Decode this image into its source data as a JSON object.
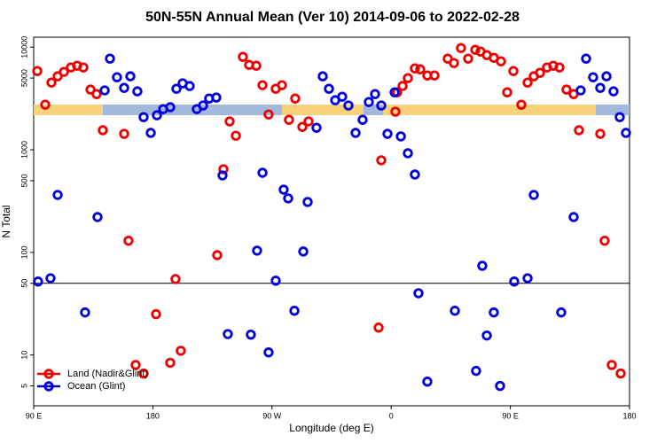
{
  "chart_data": {
    "type": "scatter",
    "title": "50N-55N Annual Mean (Ver 10)   2014-09-06 to 2022-02-28",
    "xlabel": "Longitude (deg E)",
    "ylabel": "N Total",
    "xlim": [
      90,
      540
    ],
    "xticks": [
      {
        "value": 90,
        "label": "90 E"
      },
      {
        "value": 180,
        "label": "180"
      },
      {
        "value": 270,
        "label": "90 W"
      },
      {
        "value": 360,
        "label": "0"
      },
      {
        "value": 450,
        "label": "90 E"
      },
      {
        "value": 540,
        "label": "180"
      }
    ],
    "ylim": [
      3.2,
      12500
    ],
    "log_y": true,
    "yticks": [
      5,
      10,
      50,
      100,
      500,
      1000,
      5000,
      10000
    ],
    "hline": 50,
    "legend": "lower left",
    "series": [
      {
        "name": "Land (Nadir&Glint)",
        "color": "#ee0000",
        "x": [
          92.7,
          98.7,
          103.4,
          108.1,
          112.8,
          118.1,
          122.8,
          127.5,
          132.9,
          137.5,
          142.2,
          158.3,
          161.6,
          167.0,
          173.0,
          182.4,
          193.1,
          197.1,
          201.1,
          228.6,
          233.3,
          238.0,
          242.7,
          248.0,
          252.7,
          258.1,
          262.8,
          267.4,
          272.8,
          277.5,
          282.8,
          287.5,
          292.9,
          297.6,
          350.5,
          352.5,
          363.2,
          364.5,
          368.6,
          372.6,
          377.9,
          381.9,
          387.3,
          392.7,
          402.7,
          407.4,
          412.7,
          418.1,
          423.5,
          427.5,
          432.2,
          437.5,
          442.9,
          447.6,
          452.3,
          458.3,
          463.0,
          467.7,
          472.4,
          477.7,
          482.4,
          487.1,
          492.4,
          497.8,
          501.8,
          517.9,
          521.2,
          526.6,
          533.3
        ],
        "values": [
          5850,
          2750,
          4520,
          5200,
          5740,
          6340,
          6590,
          6340,
          3860,
          3490,
          1550,
          1430,
          130,
          8.0,
          6.6,
          25,
          8.4,
          55,
          11,
          94,
          646,
          1890,
          1370,
          8040,
          6720,
          6590,
          4260,
          2210,
          3930,
          4260,
          1960,
          3160,
          1670,
          1890,
          18.5,
          790,
          2350,
          3630,
          4180,
          4990,
          6210,
          6080,
          5300,
          5300,
          7730,
          7000,
          9800,
          7730,
          9420,
          9060,
          8370,
          7880,
          7280,
          3630,
          5850,
          2750,
          4520,
          5200,
          5620,
          6340,
          6590,
          6340,
          3860,
          3490,
          1550,
          1430,
          130,
          8.0,
          6.6
        ]
      },
      {
        "name": "Ocean (Glint)",
        "color": "#0000dd",
        "x": [
          93.3,
          102.7,
          108.1,
          128.8,
          138.2,
          143.6,
          147.6,
          152.9,
          158.3,
          163.0,
          168.3,
          173.0,
          178.4,
          183.1,
          187.8,
          193.1,
          197.8,
          202.5,
          207.8,
          213.2,
          217.9,
          222.5,
          227.9,
          232.6,
          236.6,
          254.0,
          258.7,
          262.8,
          267.4,
          272.8,
          278.8,
          282.2,
          286.9,
          293.6,
          296.9,
          303.6,
          308.3,
          313.0,
          317.7,
          323.0,
          327.7,
          333.1,
          338.4,
          343.1,
          347.8,
          352.5,
          357.2,
          362.6,
          367.3,
          372.6,
          377.9,
          380.6,
          387.3,
          408.1,
          424.1,
          428.8,
          432.2,
          437.5,
          442.2,
          452.9,
          463.0,
          467.7,
          488.4,
          497.8,
          503.1,
          507.2,
          512.5,
          517.9,
          522.6,
          527.9,
          532.6,
          537.3
        ],
        "values": [
          52,
          56,
          363,
          26,
          221,
          3790,
          7730,
          5090,
          4010,
          5200,
          3710,
          2080,
          1460,
          2170,
          2490,
          2600,
          3930,
          4440,
          4180,
          2490,
          2700,
          3160,
          3230,
          562,
          16,
          15.8,
          104,
          597,
          10.6,
          53,
          409,
          336,
          27,
          102,
          310,
          1640,
          5200,
          3930,
          3040,
          3290,
          2700,
          1460,
          1960,
          2920,
          3490,
          2700,
          1430,
          3630,
          1350,
          925,
          574,
          40,
          5.5,
          27,
          7.0,
          74,
          15.5,
          26,
          5.0,
          52,
          56,
          363,
          26,
          221,
          3790,
          7730,
          5090,
          4010,
          5200,
          3710,
          2080,
          1460
        ]
      }
    ]
  }
}
